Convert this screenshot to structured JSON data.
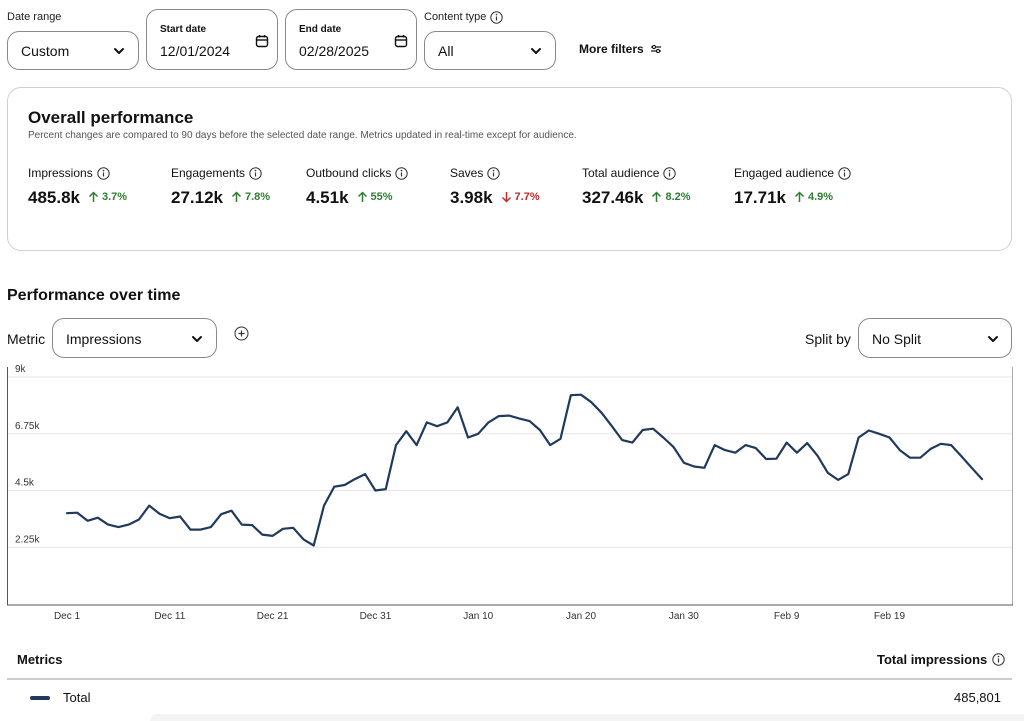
{
  "filters": {
    "date_range": {
      "label": "Date range",
      "value": "Custom"
    },
    "start_date": {
      "label": "Start date",
      "value": "12/01/2024"
    },
    "end_date": {
      "label": "End date",
      "value": "02/28/2025"
    },
    "content_type": {
      "label": "Content type",
      "value": "All"
    },
    "more_filters_label": "More filters"
  },
  "overall": {
    "title": "Overall performance",
    "subtitle": "Percent changes are compared to 90 days before the selected date range. Metrics updated in real-time except for audience.",
    "metrics": [
      {
        "name": "Impressions",
        "value": "485.8k",
        "change": "3.7%",
        "direction": "up"
      },
      {
        "name": "Engagements",
        "value": "27.12k",
        "change": "7.8%",
        "direction": "up"
      },
      {
        "name": "Outbound clicks",
        "value": "4.51k",
        "change": "55%",
        "direction": "up"
      },
      {
        "name": "Saves",
        "value": "3.98k",
        "change": "7.7%",
        "direction": "down"
      },
      {
        "name": "Total audience",
        "value": "327.46k",
        "change": "8.2%",
        "direction": "up"
      },
      {
        "name": "Engaged audience",
        "value": "17.71k",
        "change": "4.9%",
        "direction": "up"
      }
    ]
  },
  "over_time": {
    "title": "Performance over time",
    "metric_label": "Metric",
    "metric_value": "Impressions",
    "split_label": "Split by",
    "split_value": "No Split"
  },
  "table": {
    "metrics_header": "Metrics",
    "total_header": "Total impressions",
    "total_label": "Total",
    "total_value": "485,801"
  },
  "colors": {
    "line": "#203a5c",
    "up": "#2e7d32",
    "down": "#c62828"
  },
  "chart_data": {
    "type": "line",
    "y_ticks": [
      "2.25k",
      "4.5k",
      "6.75k",
      "9k"
    ],
    "y_tick_values": [
      2250,
      4500,
      6750,
      9000
    ],
    "ylim": [
      0,
      9000
    ],
    "x_ticks": [
      "Dec 1",
      "Dec 11",
      "Dec 21",
      "Dec 31",
      "Jan 10",
      "Jan 20",
      "Jan 30",
      "Feb 9",
      "Feb 19"
    ],
    "x_tick_index": [
      0,
      10,
      20,
      30,
      40,
      50,
      60,
      70,
      80
    ],
    "grid": true,
    "series": [
      {
        "color": "#203a5c",
        "values": [
          3600,
          3620,
          3300,
          3420,
          3150,
          3050,
          3150,
          3350,
          3900,
          3580,
          3400,
          3470,
          2950,
          2950,
          3050,
          3560,
          3700,
          3150,
          3130,
          2750,
          2700,
          2980,
          3020,
          2560,
          2320,
          3900,
          4650,
          4720,
          4950,
          5150,
          4500,
          4550,
          6300,
          6850,
          6300,
          7200,
          7050,
          7200,
          7800,
          6600,
          6750,
          7200,
          7450,
          7470,
          7350,
          7250,
          6900,
          6300,
          6550,
          8280,
          8300,
          8000,
          7580,
          7050,
          6500,
          6400,
          6900,
          6950,
          6600,
          6220,
          5600,
          5450,
          5400,
          6300,
          6100,
          6000,
          6300,
          6180,
          5750,
          5760,
          6400,
          6000,
          6380,
          5880,
          5200,
          4920,
          5150,
          6600,
          6880,
          6750,
          6600,
          6100,
          5800,
          5800,
          6150,
          6350,
          6300,
          5860,
          5400,
          4950
        ]
      }
    ]
  }
}
